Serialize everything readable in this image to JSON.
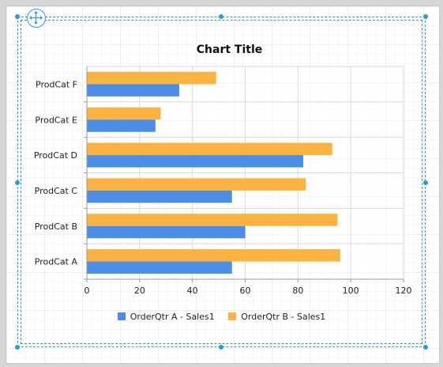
{
  "colors": {
    "series_a": "#4a8ee8",
    "series_b": "#fbb23f",
    "selection": "#2b9bd6"
  },
  "icons": {
    "move_handle": "move-arrows-icon"
  },
  "chart_data": {
    "type": "bar",
    "orientation": "horizontal",
    "title": "Chart Title",
    "categories": [
      "ProdCat A",
      "ProdCat B",
      "ProdCat C",
      "ProdCat D",
      "ProdCat E",
      "ProdCat F"
    ],
    "series": [
      {
        "name": "OrderQtr A - Sales1",
        "values": [
          55,
          60,
          55,
          82,
          26,
          35
        ]
      },
      {
        "name": "OrderQtr B - Sales1",
        "values": [
          96,
          95,
          83,
          93,
          28,
          49
        ]
      }
    ],
    "xlim": [
      0,
      120
    ],
    "xticks": [
      "0",
      "20",
      "40",
      "60",
      "80",
      "100",
      "120"
    ],
    "grid": true,
    "legend_position": "bottom"
  }
}
